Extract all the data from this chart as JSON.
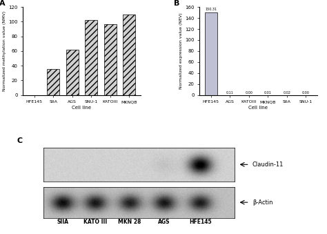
{
  "panel_A": {
    "categories": [
      "HFE145",
      "SIIA",
      "AGS",
      "SNU-1",
      "KATOIII",
      "MKNQB"
    ],
    "values": [
      0,
      35,
      62,
      102,
      97,
      110
    ],
    "ylabel": "Normalized methylation value (NMV)",
    "xlabel": "Cell line",
    "ylim": [
      0,
      120
    ],
    "yticks": [
      0,
      20,
      40,
      60,
      80,
      100,
      120
    ],
    "bar_color": "#d0d0d0",
    "hatch": "////",
    "label": "A"
  },
  "panel_B": {
    "categories": [
      "HFE145",
      "AGS",
      "KATOIII",
      "MKNQB",
      "SIIA",
      "SNU-1"
    ],
    "values": [
      150.31,
      0.11,
      0.0,
      0.01,
      0.02,
      0.0
    ],
    "labels_above": [
      "150.31",
      "0.11",
      "0.00",
      "0.01",
      "0.02",
      "0.00"
    ],
    "ylabel": "Normalized expression value (NEV)",
    "xlabel": "Cell line",
    "ylim": [
      0,
      160
    ],
    "yticks": [
      0,
      20,
      40,
      60,
      80,
      100,
      120,
      140,
      160
    ],
    "bar_color": "#c0c0d4",
    "label": "B"
  },
  "panel_C": {
    "label": "C",
    "cell_lines": [
      "SIIA",
      "KATO III",
      "MKN 28",
      "AGS",
      "HFE145"
    ],
    "annotations": [
      "Claudin-11",
      "β-Actin"
    ],
    "blot1_bg": "#c8c8c8",
    "blot2_bg": "#a0a0a0"
  }
}
